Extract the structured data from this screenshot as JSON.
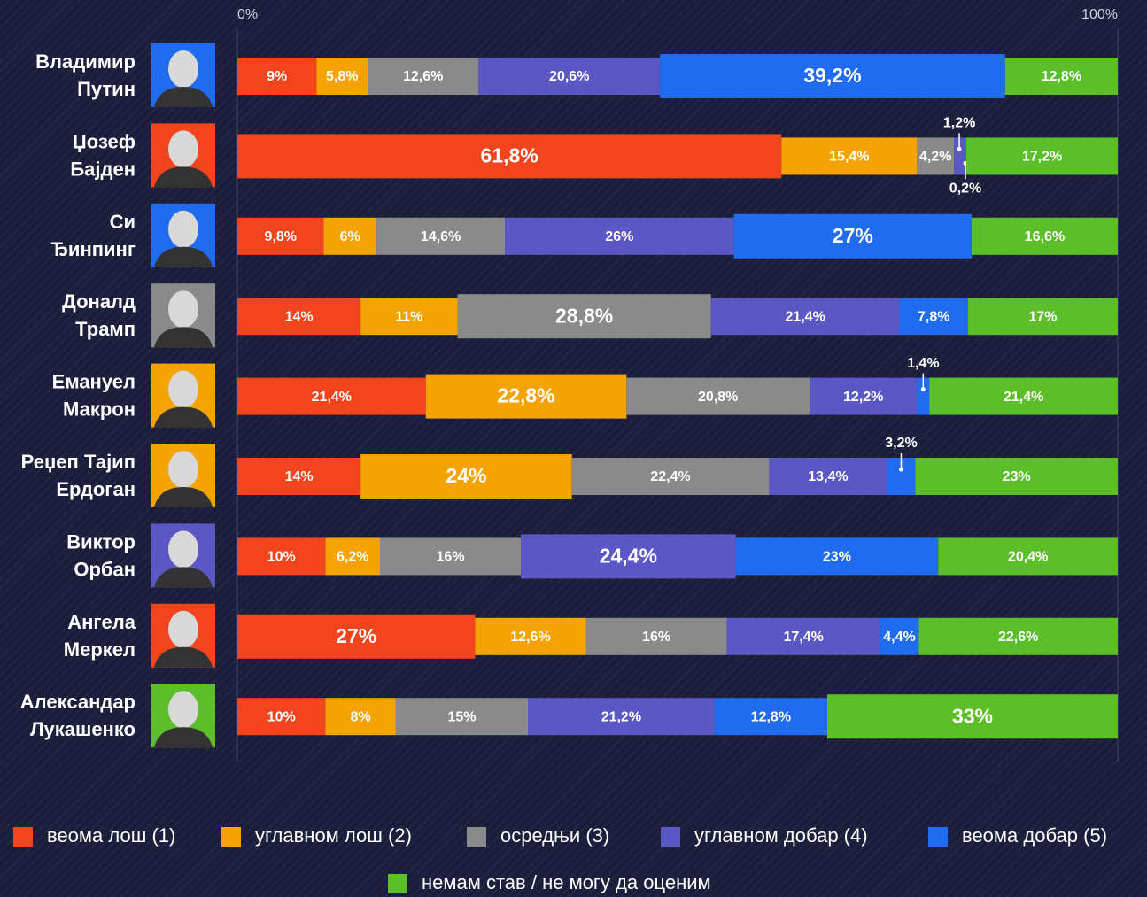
{
  "chart_data": {
    "type": "stacked-bar-horizontal",
    "categories": [
      "Владимир\nПутин",
      "Џозеф\nБајден",
      "Си\nЂинпинг",
      "Доналд\nТрамп",
      "Емануел\nМакрон",
      "Реџеп Тајип\nЕрдоган",
      "Виктор\nОрбан",
      "Ангела\nМеркел",
      "Александар\nЛукашенко"
    ],
    "xlim": [
      0,
      100
    ],
    "xticks": [
      {
        "value": 0,
        "label": "0%"
      },
      {
        "value": 100,
        "label": "100%"
      }
    ],
    "grid": true,
    "series": [
      {
        "name": "веома лош (1)",
        "color": "#f2441d",
        "values": [
          9,
          61.8,
          9.8,
          14,
          21.4,
          14,
          10,
          27,
          10
        ],
        "value_labels": [
          "9%",
          "61,8%",
          "9,8%",
          "14%",
          "21,4%",
          "14%",
          "10%",
          "27%",
          "10%"
        ]
      },
      {
        "name": "углавном лош (2)",
        "color": "#f5a300",
        "values": [
          5.8,
          15.4,
          6,
          11,
          22.8,
          24,
          6.2,
          12.6,
          8
        ],
        "value_labels": [
          "5,8%",
          "15,4%",
          "6%",
          "11%",
          "22,8%",
          "24%",
          "6,2%",
          "12,6%",
          "8%"
        ]
      },
      {
        "name": "осредњи (3)",
        "color": "#8a8a8a",
        "values": [
          12.6,
          4.2,
          14.6,
          28.8,
          20.8,
          22.4,
          16,
          16,
          15
        ],
        "value_labels": [
          "12,6%",
          "4,2%",
          "14,6%",
          "28,8%",
          "20,8%",
          "22,4%",
          "16%",
          "16%",
          "15%"
        ]
      },
      {
        "name": "углавном добар (4)",
        "color": "#5b58c6",
        "values": [
          20.6,
          1.2,
          26,
          21.4,
          12.2,
          13.4,
          24.4,
          17.4,
          21.2
        ],
        "value_labels": [
          "20,6%",
          "1,2%",
          "26%",
          "21,4%",
          "12,2%",
          "13,4%",
          "24,4%",
          "17,4%",
          "21,2%"
        ]
      },
      {
        "name": "веома добар (5)",
        "color": "#1f6cf0",
        "values": [
          39.2,
          0.2,
          27,
          7.8,
          1.4,
          3.2,
          23,
          4.4,
          12.8
        ],
        "value_labels": [
          "39,2%",
          "0,2%",
          "27%",
          "7,8%",
          "1,4%",
          "3,2%",
          "23%",
          "4,4%",
          "12,8%"
        ]
      },
      {
        "name": "немам став / не могу да оценим",
        "color": "#5cbf2a",
        "values": [
          12.8,
          17.2,
          16.6,
          17,
          21.4,
          23,
          20.4,
          22.6,
          33
        ],
        "value_labels": [
          "12,8%",
          "17,2%",
          "16,6%",
          "17%",
          "21,4%",
          "23%",
          "20,4%",
          "22,6%",
          "33%"
        ]
      }
    ]
  }
}
